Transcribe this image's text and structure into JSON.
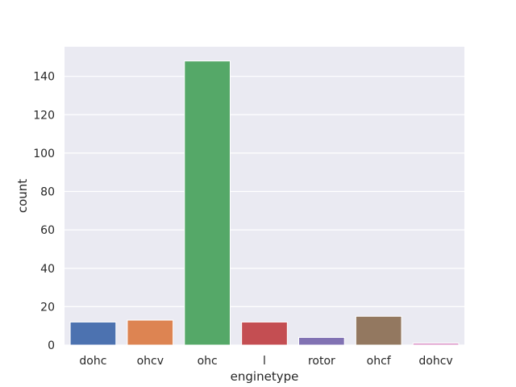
{
  "chart_data": {
    "type": "bar",
    "title": "",
    "xlabel": "enginetype",
    "ylabel": "count",
    "categories": [
      "dohc",
      "ohcv",
      "ohc",
      "l",
      "rotor",
      "ohcf",
      "dohcv"
    ],
    "values": [
      12,
      13,
      148,
      12,
      4,
      15,
      1
    ],
    "ylim": [
      0,
      155.4
    ],
    "yticks": [
      0,
      20,
      40,
      60,
      80,
      100,
      120,
      140
    ],
    "grid": true,
    "legend": "none",
    "colors": [
      "#4c72b0",
      "#dd8452",
      "#55a868",
      "#c44e52",
      "#8172b3",
      "#937860",
      "#da8bc3"
    ],
    "background": "#eaeaf2"
  }
}
